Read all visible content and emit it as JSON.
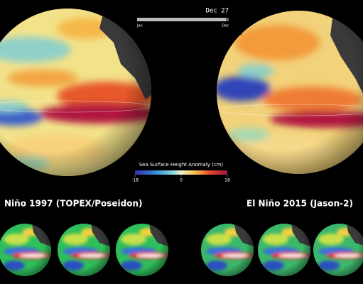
{
  "date": "Dec 27",
  "timeline": {
    "start": "Jan",
    "end": "Dec"
  },
  "colorbar": {
    "title": "Sea Surface Height Anomaly (cm)",
    "lim": [
      -18,
      18
    ],
    "ticks": [
      -18,
      0,
      18
    ]
  },
  "panels": [
    {
      "label": "Niño 1997 (TOPEX/Poseidon)"
    },
    {
      "label": "El Niño 2015 (Jason-2)"
    }
  ]
}
